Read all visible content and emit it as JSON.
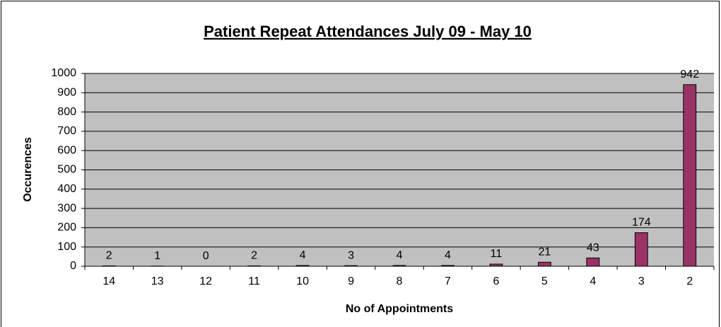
{
  "chart_data": {
    "type": "bar",
    "title": "Patient Repeat Attendances July 09 - May 10",
    "x_label": "No of Appointments",
    "y_label": "Occurences",
    "categories": [
      "14",
      "13",
      "12",
      "11",
      "10",
      "9",
      "8",
      "7",
      "6",
      "5",
      "4",
      "3",
      "2"
    ],
    "values": [
      2,
      1,
      0,
      2,
      4,
      3,
      4,
      4,
      11,
      21,
      43,
      174,
      942
    ],
    "color": "#993366",
    "ylim": [
      0,
      1000
    ],
    "yticks": [
      0,
      100,
      200,
      300,
      400,
      500,
      600,
      700,
      800,
      900,
      1000
    ],
    "grid": true
  }
}
